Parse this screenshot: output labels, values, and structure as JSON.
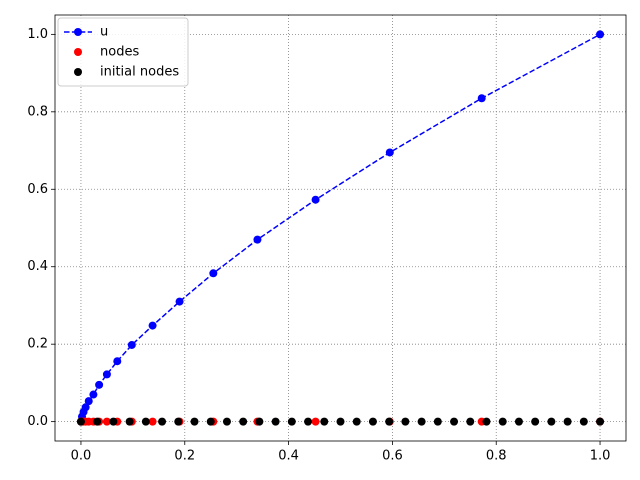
{
  "chart_data": {
    "type": "line-scatter",
    "xlim": [
      -0.05,
      1.05
    ],
    "ylim": [
      -0.05,
      1.05
    ],
    "xticks": [
      {
        "value": 0,
        "label": "0.0"
      },
      {
        "value": 0.2,
        "label": "0.2"
      },
      {
        "value": 0.4,
        "label": "0.4"
      },
      {
        "value": 0.6,
        "label": "0.6"
      },
      {
        "value": 0.8,
        "label": "0.8"
      },
      {
        "value": 1,
        "label": "1.0"
      }
    ],
    "yticks": [
      {
        "value": 0,
        "label": "0.0"
      },
      {
        "value": 0.2,
        "label": "0.2"
      },
      {
        "value": 0.4,
        "label": "0.4"
      },
      {
        "value": 0.6,
        "label": "0.6"
      },
      {
        "value": 0.8,
        "label": "0.8"
      },
      {
        "value": 1,
        "label": "1.0"
      }
    ],
    "grid": true,
    "legend": "upper-left",
    "series": [
      {
        "name": "u",
        "kind": "line",
        "line_style": "dashed",
        "color": "#0000ff",
        "x": [
          0,
          0.002,
          0.005,
          0.009,
          0.015,
          0.024,
          0.035,
          0.05,
          0.07,
          0.098,
          0.138,
          0.19,
          0.255,
          0.34,
          0.452,
          0.595,
          0.772,
          1.0
        ],
        "values": [
          0,
          0.013,
          0.025,
          0.037,
          0.053,
          0.07,
          0.095,
          0.122,
          0.156,
          0.198,
          0.248,
          0.31,
          0.383,
          0.47,
          0.573,
          0.695,
          0.835,
          1.0
        ]
      },
      {
        "name": "nodes",
        "kind": "scatter",
        "color": "#ff0000",
        "x": [
          0,
          0.002,
          0.005,
          0.009,
          0.015,
          0.024,
          0.035,
          0.05,
          0.07,
          0.098,
          0.138,
          0.19,
          0.255,
          0.34,
          0.452,
          0.595,
          0.772,
          1.0
        ],
        "values": [
          0,
          0,
          0,
          0,
          0,
          0,
          0,
          0,
          0,
          0,
          0,
          0,
          0,
          0,
          0,
          0,
          0,
          0
        ]
      },
      {
        "name": "initial nodes",
        "kind": "scatter",
        "color": "#000000",
        "x": [
          0,
          0.03125,
          0.0625,
          0.09375,
          0.125,
          0.15625,
          0.1875,
          0.21875,
          0.25,
          0.28125,
          0.3125,
          0.34375,
          0.375,
          0.40625,
          0.4375,
          0.46875,
          0.5,
          0.53125,
          0.5625,
          0.59375,
          0.625,
          0.65625,
          0.6875,
          0.71875,
          0.75,
          0.78125,
          0.8125,
          0.84375,
          0.875,
          0.90625,
          0.9375,
          0.96875,
          1.0
        ],
        "values": [
          0,
          0,
          0,
          0,
          0,
          0,
          0,
          0,
          0,
          0,
          0,
          0,
          0,
          0,
          0,
          0,
          0,
          0,
          0,
          0,
          0,
          0,
          0,
          0,
          0,
          0,
          0,
          0,
          0,
          0,
          0,
          0,
          0
        ]
      }
    ]
  }
}
